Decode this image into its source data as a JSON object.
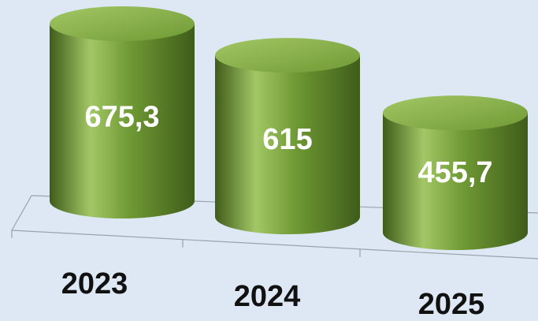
{
  "chart_data": {
    "type": "bar",
    "style": "3d-cylinder",
    "categories": [
      "2023",
      "2024",
      "2025"
    ],
    "values": [
      675.3,
      615,
      455.7
    ],
    "value_labels": [
      "675,3",
      "615",
      "455,7"
    ],
    "grid": false,
    "legend": "none",
    "colors": {
      "background": "#dde8f4",
      "bar": "#6f9a34",
      "bar_dark": "#3f5c1a",
      "bar_light": "#a3c766",
      "value_text": "#ffffff",
      "category_text": "#111111",
      "axis_line": "#9aa3ad"
    }
  }
}
